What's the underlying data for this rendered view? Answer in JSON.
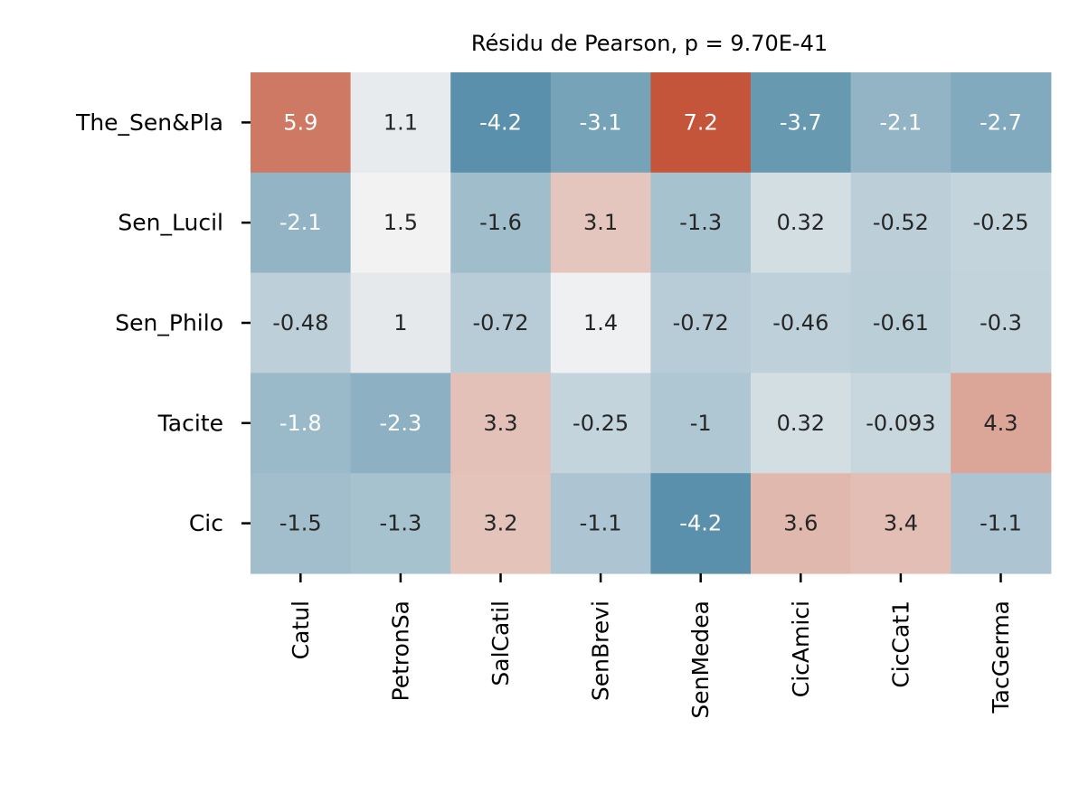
{
  "chart_data": {
    "type": "heatmap",
    "title": "Résidu de Pearson, p = 9.70E-41",
    "rows": [
      "The_Sen&Pla",
      "Sen_Lucil",
      "Sen_Philo",
      "Tacite",
      "Cic"
    ],
    "columns": [
      "Catul",
      "PetronSa",
      "SalCatil",
      "SenBrevi",
      "SenMedea",
      "CicAmici",
      "CicCat1",
      "TacGerma"
    ],
    "values": [
      [
        5.9,
        1.1,
        -4.2,
        -3.1,
        7.2,
        -3.7,
        -2.1,
        -2.7
      ],
      [
        -2.1,
        1.5,
        -1.6,
        3.1,
        -1.3,
        0.32,
        -0.52,
        -0.25
      ],
      [
        -0.48,
        1,
        -0.72,
        1.4,
        -0.72,
        -0.46,
        -0.61,
        -0.3
      ],
      [
        -1.8,
        -2.3,
        3.3,
        -0.25,
        -1,
        0.32,
        -0.093,
        4.3
      ],
      [
        -1.5,
        -1.3,
        3.2,
        -1.1,
        -4.2,
        3.6,
        3.4,
        -1.1
      ]
    ],
    "value_labels": [
      [
        "5.9",
        "1.1",
        "-4.2",
        "-3.1",
        "7.2",
        "-3.7",
        "-2.1",
        "-2.7"
      ],
      [
        "-2.1",
        "1.5",
        "-1.6",
        "3.1",
        "-1.3",
        "0.32",
        "-0.52",
        "-0.25"
      ],
      [
        "-0.48",
        "1",
        "-0.72",
        "1.4",
        "-0.72",
        "-0.46",
        "-0.61",
        "-0.3"
      ],
      [
        "-1.8",
        "-2.3",
        "3.3",
        "-0.25",
        "-1",
        "0.32",
        "-0.093",
        "4.3"
      ],
      [
        "-1.5",
        "-1.3",
        "3.2",
        "-1.1",
        "-4.2",
        "3.6",
        "3.4",
        "-1.1"
      ]
    ],
    "colormap": "diverging blue-white-red",
    "colors": {
      "negative": "#5a90ab",
      "neutral": "#f2f2f2",
      "positive": "#c4553a",
      "text_dark": "#262626",
      "text_light": "#ffffff"
    },
    "color_range": [
      -4.2,
      7.2
    ],
    "colorbar": false,
    "grid": false
  }
}
